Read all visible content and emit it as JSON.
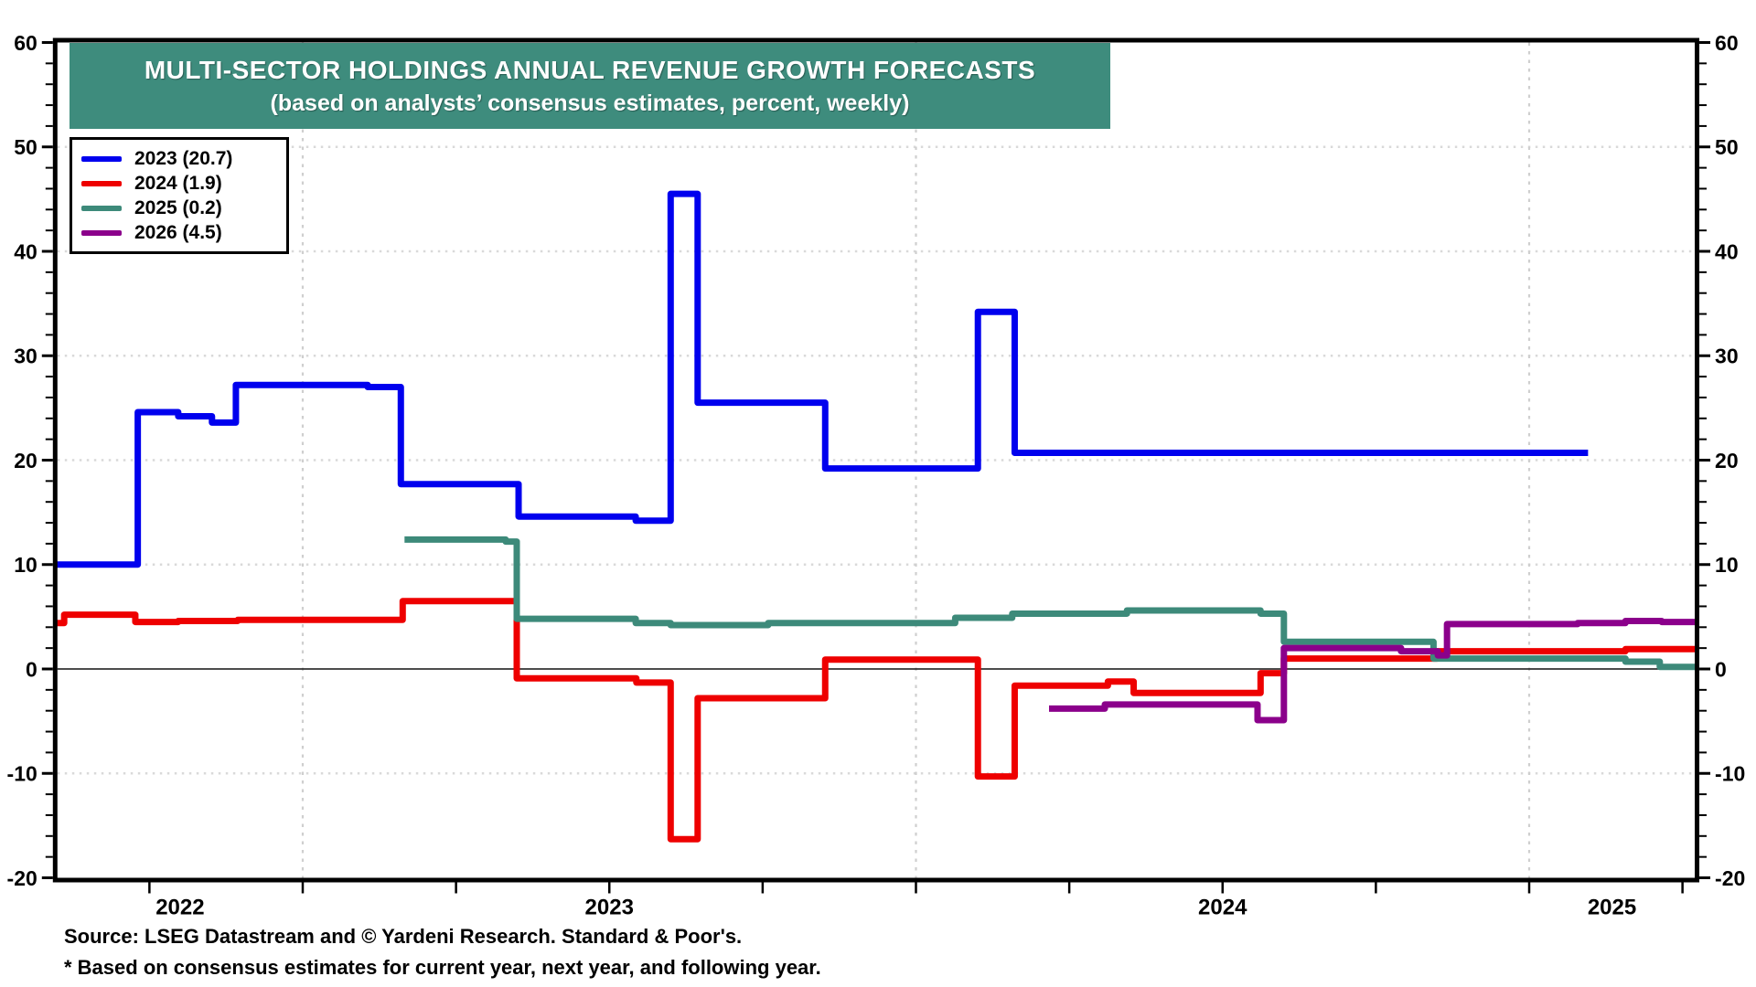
{
  "title": {
    "line1": "MULTI-SECTOR HOLDINGS ANNUAL REVENUE GROWTH FORECASTS",
    "line2": "(based on analysts’ consensus estimates, percent, weekly)",
    "bg_color": "#3E8C7D",
    "text_color": "#FFFFFF"
  },
  "legend": {
    "items": [
      {
        "label": "2023 (20.7)",
        "color": "#0000EE"
      },
      {
        "label": "2024 (1.9)",
        "color": "#EE0000"
      },
      {
        "label": "2025 (0.2)",
        "color": "#3D8A7A"
      },
      {
        "label": "2026 (4.5)",
        "color": "#8B008B"
      }
    ]
  },
  "footer": {
    "source": "Source: LSEG Datastream and © Yardeni Research. Standard & Poor's.",
    "note": "* Based on consensus estimates for current year, next year, and following year."
  },
  "chart_data": {
    "type": "line",
    "step": true,
    "title": "MULTI-SECTOR HOLDINGS ANNUAL REVENUE GROWTH FORECASTS",
    "subtitle": "(based on analysts’ consensus estimates, percent, weekly)",
    "ylabel": "percent",
    "grid": true,
    "legend_position": "top-left",
    "y_axis": {
      "min": -20,
      "max": 60,
      "major_step": 10,
      "minor_step": 2,
      "tick_labels": [
        60,
        50,
        40,
        30,
        20,
        10,
        0,
        -10,
        -20
      ],
      "zero_line": true,
      "labels_both_sides": true
    },
    "x_axis": {
      "start_year_fraction": 2022.6,
      "end_year_fraction": 2025.27,
      "year_gridlines": [
        2023,
        2024,
        2025
      ],
      "quarter_ticks": [
        2022.75,
        2023.0,
        2023.25,
        2023.5,
        2023.75,
        2024.0,
        2024.25,
        2024.5,
        2024.75,
        2025.0,
        2025.25
      ],
      "labels": [
        {
          "text": "2022",
          "pos": 2022.8
        },
        {
          "text": "2023",
          "pos": 2023.5
        },
        {
          "text": "2024",
          "pos": 2024.5
        },
        {
          "text": "2025",
          "pos": 2025.135
        }
      ]
    },
    "series": [
      {
        "name": "2023 (20.7)",
        "final_value": 20.7,
        "color": "#0000EE",
        "points": [
          [
            2022.599,
            10.0
          ],
          [
            2022.731,
            24.6
          ],
          [
            2022.797,
            24.2
          ],
          [
            2022.852,
            23.6
          ],
          [
            2022.891,
            27.2
          ],
          [
            2023.106,
            27.0
          ],
          [
            2023.16,
            17.7
          ],
          [
            2023.352,
            14.6
          ],
          [
            2023.543,
            14.2
          ],
          [
            2023.6,
            45.5
          ],
          [
            2023.644,
            25.5
          ],
          [
            2023.852,
            19.2
          ],
          [
            2024.101,
            34.2
          ],
          [
            2024.161,
            20.7
          ]
        ],
        "end": 2025.096
      },
      {
        "name": "2024 (1.9)",
        "final_value": 1.9,
        "color": "#EE0000",
        "points": [
          [
            2022.599,
            4.4
          ],
          [
            2022.611,
            5.2
          ],
          [
            2022.727,
            4.5
          ],
          [
            2022.797,
            4.6
          ],
          [
            2022.894,
            4.7
          ],
          [
            2023.163,
            6.5
          ],
          [
            2023.349,
            -0.9
          ],
          [
            2023.544,
            -1.3
          ],
          [
            2023.6,
            -16.3
          ],
          [
            2023.644,
            -2.8
          ],
          [
            2023.852,
            0.9
          ],
          [
            2024.101,
            -10.3
          ],
          [
            2024.161,
            -1.6
          ],
          [
            2024.313,
            -1.2
          ],
          [
            2024.355,
            -2.3
          ],
          [
            2024.562,
            -0.4
          ],
          [
            2024.6,
            1.0
          ],
          [
            2024.85,
            1.7
          ],
          [
            2025.157,
            1.9
          ]
        ],
        "end": 2025.27
      },
      {
        "name": "2025 (0.2)",
        "final_value": 0.2,
        "color": "#3D8A7A",
        "points": [
          [
            2023.166,
            12.4
          ],
          [
            2023.331,
            12.2
          ],
          [
            2023.349,
            4.8
          ],
          [
            2023.543,
            4.4
          ],
          [
            2023.6,
            4.2
          ],
          [
            2023.759,
            4.4
          ],
          [
            2024.064,
            4.9
          ],
          [
            2024.157,
            5.3
          ],
          [
            2024.344,
            5.6
          ],
          [
            2024.562,
            5.3
          ],
          [
            2024.6,
            2.6
          ],
          [
            2024.844,
            1.0
          ],
          [
            2025.157,
            0.7
          ],
          [
            2025.213,
            0.2
          ]
        ],
        "end": 2025.27
      },
      {
        "name": "2026 (4.5)",
        "final_value": 4.5,
        "color": "#8B008B",
        "points": [
          [
            2024.217,
            -3.8
          ],
          [
            2024.308,
            -3.4
          ],
          [
            2024.557,
            -4.9
          ],
          [
            2024.6,
            2.0
          ],
          [
            2024.791,
            1.7
          ],
          [
            2024.851,
            1.3
          ],
          [
            2024.866,
            4.3
          ],
          [
            2025.079,
            4.4
          ],
          [
            2025.157,
            4.6
          ],
          [
            2025.216,
            4.5
          ]
        ],
        "end": 2025.27
      }
    ],
    "colors": {
      "grid_dotted": "#D9D9D9",
      "year_gridline": "#CFCFCF",
      "zero_line": "#111111",
      "frame": "#000000"
    }
  }
}
